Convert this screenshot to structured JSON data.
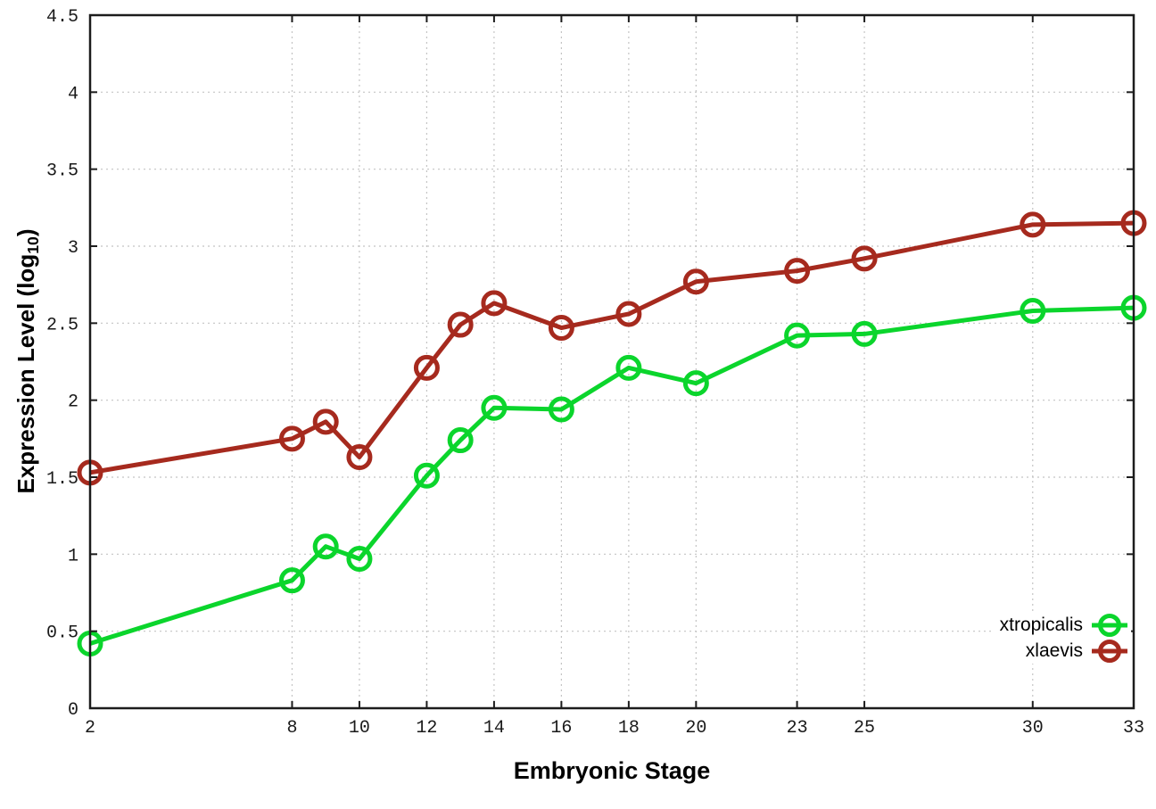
{
  "figure": {
    "xlabel": "Embryonic Stage",
    "ylabel_parts": {
      "main": "Expression Level (log",
      "sub": "10",
      "close": ")"
    }
  },
  "styles": {
    "background": "#ffffff",
    "grid_color": "#c4c4c4",
    "border_color": "#1c1c1c",
    "tick_label_color": "#1a1a1a",
    "green_series_color": "#0bd52c",
    "red_series_color": "#a62a1e"
  },
  "chart_data": {
    "type": "line",
    "title": "",
    "xlabel": "Embryonic Stage",
    "ylabel": "Expression Level (log10)",
    "xlim": [
      2,
      33
    ],
    "ylim": [
      0,
      4.5
    ],
    "grid": true,
    "legend_position": "bottom-right",
    "marker": "open-circle",
    "x": [
      2,
      8,
      9,
      10,
      12,
      13,
      14,
      16,
      18,
      20,
      23,
      25,
      30,
      33
    ],
    "xticks": {
      "values": [
        2,
        8,
        10,
        12,
        14,
        16,
        18,
        20,
        23,
        25,
        30,
        33
      ],
      "labels": [
        "2",
        "8",
        "10",
        "12",
        "14",
        "16",
        "18",
        "20",
        "23",
        "25",
        "30",
        "33"
      ]
    },
    "yticks": {
      "values": [
        0,
        0.5,
        1,
        1.5,
        2,
        2.5,
        3,
        3.5,
        4,
        4.5
      ],
      "labels": [
        "0",
        "0.5",
        "1",
        "1.5",
        "2",
        "2.5",
        "3",
        "3.5",
        "4",
        "4.5"
      ]
    },
    "series": [
      {
        "name": "xtropicalis",
        "color": "#0bd52c",
        "values": [
          0.42,
          0.83,
          1.05,
          0.97,
          1.51,
          1.74,
          1.95,
          1.94,
          2.21,
          2.11,
          2.42,
          2.43,
          2.58,
          2.6
        ]
      },
      {
        "name": "xlaevis",
        "color": "#a62a1e",
        "values": [
          1.53,
          1.75,
          1.86,
          1.63,
          2.21,
          2.49,
          2.63,
          2.47,
          2.56,
          2.77,
          2.84,
          2.92,
          3.14,
          3.15
        ]
      }
    ]
  }
}
